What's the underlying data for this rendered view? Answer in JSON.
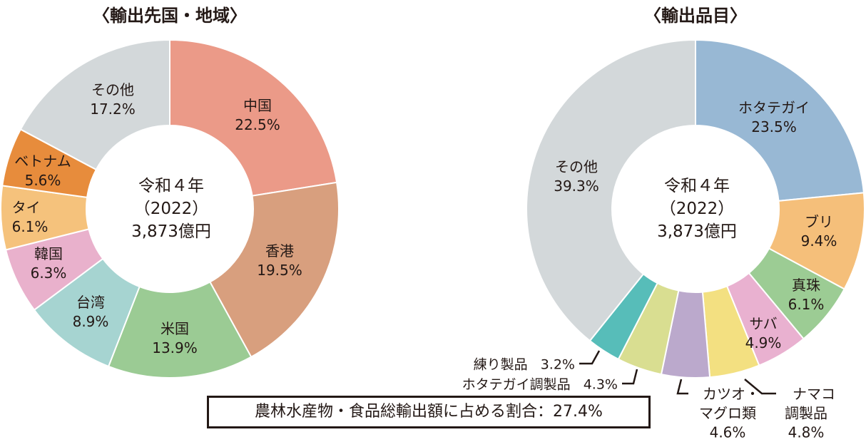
{
  "chart_data": [
    {
      "type": "pie",
      "variant": "donut",
      "title": "〈輸出先国・地域〉",
      "center_label": [
        "令和４年",
        "（2022）",
        "3,873億円"
      ],
      "categories": [
        "中国",
        "香港",
        "米国",
        "台湾",
        "韓国",
        "タイ",
        "ベトナム",
        "その他"
      ],
      "values": [
        22.5,
        19.5,
        13.9,
        8.9,
        6.3,
        6.1,
        5.6,
        17.2
      ],
      "value_labels": [
        "22.5%",
        "19.5%",
        "13.9%",
        "8.9%",
        "6.3%",
        "6.1%",
        "5.6%",
        "17.2%"
      ],
      "colors": [
        "#eb9a88",
        "#d89f7e",
        "#9bcb94",
        "#a6d4d1",
        "#e9b1cc",
        "#f5c27c",
        "#e78c3c",
        "#d3d8da"
      ]
    },
    {
      "type": "pie",
      "variant": "donut",
      "title": "〈輸出品目〉",
      "center_label": [
        "令和４年",
        "（2022）",
        "3,873億円"
      ],
      "categories": [
        "ホタテガイ",
        "ブリ",
        "真珠",
        "サバ",
        "ナマコ調製品",
        "カツオ・マグロ類",
        "ホタテガイ調製品",
        "練り製品",
        "その他"
      ],
      "values": [
        23.5,
        9.4,
        6.1,
        4.9,
        4.8,
        4.6,
        4.3,
        3.2,
        39.3
      ],
      "value_labels": [
        "23.5%",
        "9.4%",
        "6.1%",
        "4.9%",
        "4.8%",
        "4.6%",
        "4.3%",
        "3.2%",
        "39.3%"
      ],
      "colors": [
        "#98b8d4",
        "#f5bf7a",
        "#9ccc94",
        "#e9b1d0",
        "#f3e081",
        "#bba9cc",
        "#d9de91",
        "#57bdb9",
        "#d3d8da"
      ]
    }
  ],
  "labels": {
    "naMako": [
      "ナマコ",
      "調製品"
    ],
    "katsuo": [
      "カツオ・",
      "マグロ類"
    ]
  },
  "note": "農林水産物・食品総輸出額に占める割合：27.4%"
}
